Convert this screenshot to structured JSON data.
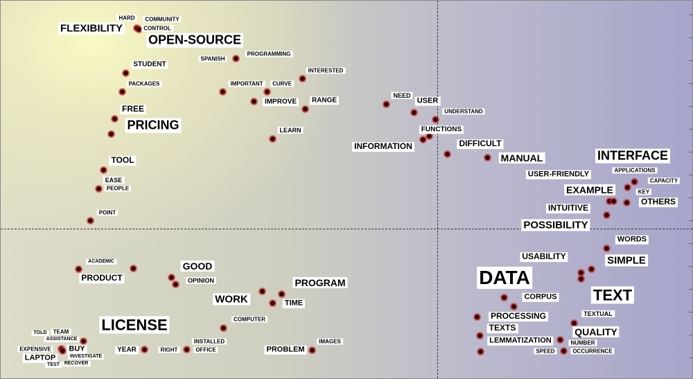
{
  "words": [
    "FLEXIBILITY",
    "HARD",
    "COMMUNITY",
    "CONTROL",
    "OPEN-SOURCE",
    "PROGRAMMING",
    "SPANISH",
    "STUDENT",
    "INTERESTED",
    "PACKAGES",
    "IMPORTANT",
    "CURVE",
    "IMPROVE",
    "RANGE",
    "NEED",
    "USER",
    "UNDERSTAND",
    "FREE",
    "PRICING",
    "FUNCTIONS",
    "LEARN",
    "INFORMATION",
    "DIFFICULT",
    "MANUAL",
    "INTERFACE",
    "TOOL",
    "APPLICATIONS",
    "USER-FRIENDLY",
    "EASE",
    "CAPACITY",
    "PEOPLE",
    "EXAMPLE",
    "KEY",
    "OTHERS",
    "INTUITIVE",
    "POINT",
    "POSSIBILITY",
    "WORDS",
    "ACADEMIC",
    "USABILITY",
    "SIMPLE",
    "GOOD",
    "PRODUCT",
    "DATA",
    "OPINION",
    "PROGRAM",
    "TEXT",
    "WORK",
    "TIME",
    "CORPUS",
    "TEXTUAL",
    "PROCESSING",
    "LICENSE",
    "COMPUTER",
    "TEXTS",
    "QUALITY",
    "TOLD",
    "TEAM",
    "ASSISTANCE",
    "LEMMATIZATION",
    "INSTALLED",
    "IMAGES",
    "NUMBER",
    "EXPENSIVE",
    "BUY",
    "YEAR",
    "RIGHT",
    "OFFICE",
    "PROBLEM",
    "SPEED",
    "OCCURRENCE",
    "LAPTOP",
    "INVESTIGATE",
    "TEST",
    "RECOVER"
  ]
}
